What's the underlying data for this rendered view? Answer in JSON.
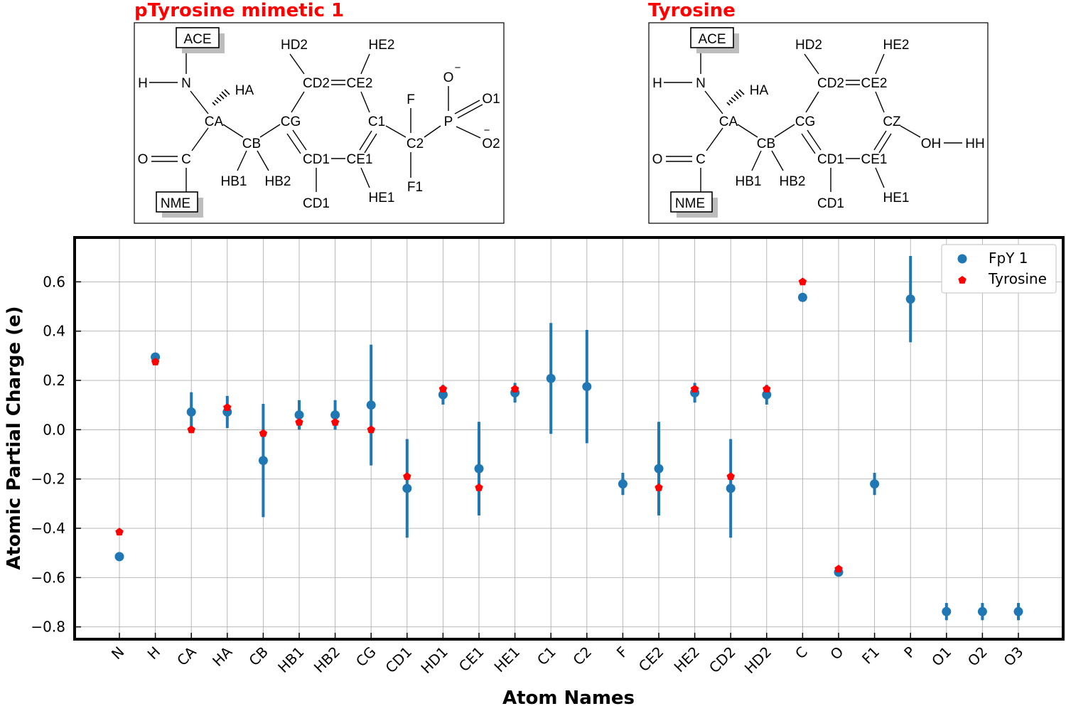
{
  "panels": {
    "left_title": "pTyrosine mimetic 1",
    "right_title": "Tyrosine",
    "left_atoms": {
      "ace": "ACE",
      "nme": "NME",
      "h": "H",
      "n": "N",
      "ha": "HA",
      "ca": "CA",
      "cb": "CB",
      "o": "O",
      "c": "C",
      "hb1": "HB1",
      "hb2": "HB2",
      "cg": "CG",
      "hd2": "HD2",
      "cd2": "CD2",
      "he2": "HE2",
      "ce2": "CE2",
      "cd1a": "CD1",
      "cd1b": "CD1",
      "ce1": "CE1",
      "he1": "HE1",
      "c1": "C1",
      "c2": "C2",
      "f": "F",
      "f1": "F1",
      "p": "P",
      "om": "O",
      "o1": "O1",
      "o2": "O2",
      "minus": "−"
    },
    "right_atoms": {
      "ace": "ACE",
      "nme": "NME",
      "h": "H",
      "n": "N",
      "ha": "HA",
      "ca": "CA",
      "cb": "CB",
      "o": "O",
      "c": "C",
      "hb1": "HB1",
      "hb2": "HB2",
      "cg": "CG",
      "hd2": "HD2",
      "cd2": "CD2",
      "he2": "HE2",
      "ce2": "CE2",
      "cd1a": "CD1",
      "cd1b": "CD1",
      "ce1": "CE1",
      "he1": "HE1",
      "cz": "CZ",
      "oh": "OH",
      "hh": "HH"
    }
  },
  "chart_data": {
    "type": "scatter",
    "title": "",
    "xlabel": "Atom Names",
    "ylabel": "Atomic Partial Charge (e)",
    "ylim": [
      -0.85,
      0.78
    ],
    "yticks": [
      -0.8,
      -0.6,
      -0.4,
      -0.2,
      0.0,
      0.2,
      0.4,
      0.6
    ],
    "ytick_labels": [
      "−0.8",
      "−0.6",
      "−0.4",
      "−0.2",
      "0.0",
      "0.2",
      "0.4",
      "0.6"
    ],
    "grid": true,
    "legend_position": "top-right",
    "categories": [
      "N",
      "H",
      "CA",
      "HA",
      "CB",
      "HB1",
      "HB2",
      "CG",
      "CD1",
      "HD1",
      "CE1",
      "HE1",
      "C1",
      "C2",
      "F",
      "CE2",
      "HE2",
      "CD2",
      "HD2",
      "C",
      "O",
      "F1",
      "P",
      "O1",
      "O2",
      "O3"
    ],
    "series": [
      {
        "name": "FpY 1",
        "color": "#1f77b4",
        "marker": "circle",
        "values": [
          -0.515,
          0.295,
          0.072,
          0.072,
          -0.125,
          0.06,
          0.06,
          0.1,
          -0.238,
          0.142,
          -0.158,
          0.15,
          0.208,
          0.175,
          -0.22,
          -0.158,
          0.15,
          -0.238,
          0.142,
          0.537,
          -0.578,
          -0.22,
          0.53,
          -0.738,
          -0.738,
          -0.738
        ],
        "error": [
          0,
          0,
          0.08,
          0.065,
          0.23,
          0.06,
          0.06,
          0.245,
          0.2,
          0.04,
          0.19,
          0.04,
          0.225,
          0.23,
          0.045,
          0.19,
          0.04,
          0.2,
          0.04,
          0,
          0,
          0.045,
          0.175,
          0.035,
          0.035,
          0.035
        ]
      },
      {
        "name": "Tyrosine",
        "color": "#ff0000",
        "marker": "pentagon",
        "values": [
          -0.415,
          0.275,
          0.0,
          0.09,
          -0.015,
          0.03,
          0.03,
          0.0,
          -0.19,
          0.165,
          -0.235,
          0.165,
          null,
          null,
          null,
          -0.235,
          0.165,
          -0.19,
          0.165,
          0.6,
          -0.565,
          null,
          null,
          null,
          null,
          null
        ]
      }
    ]
  }
}
